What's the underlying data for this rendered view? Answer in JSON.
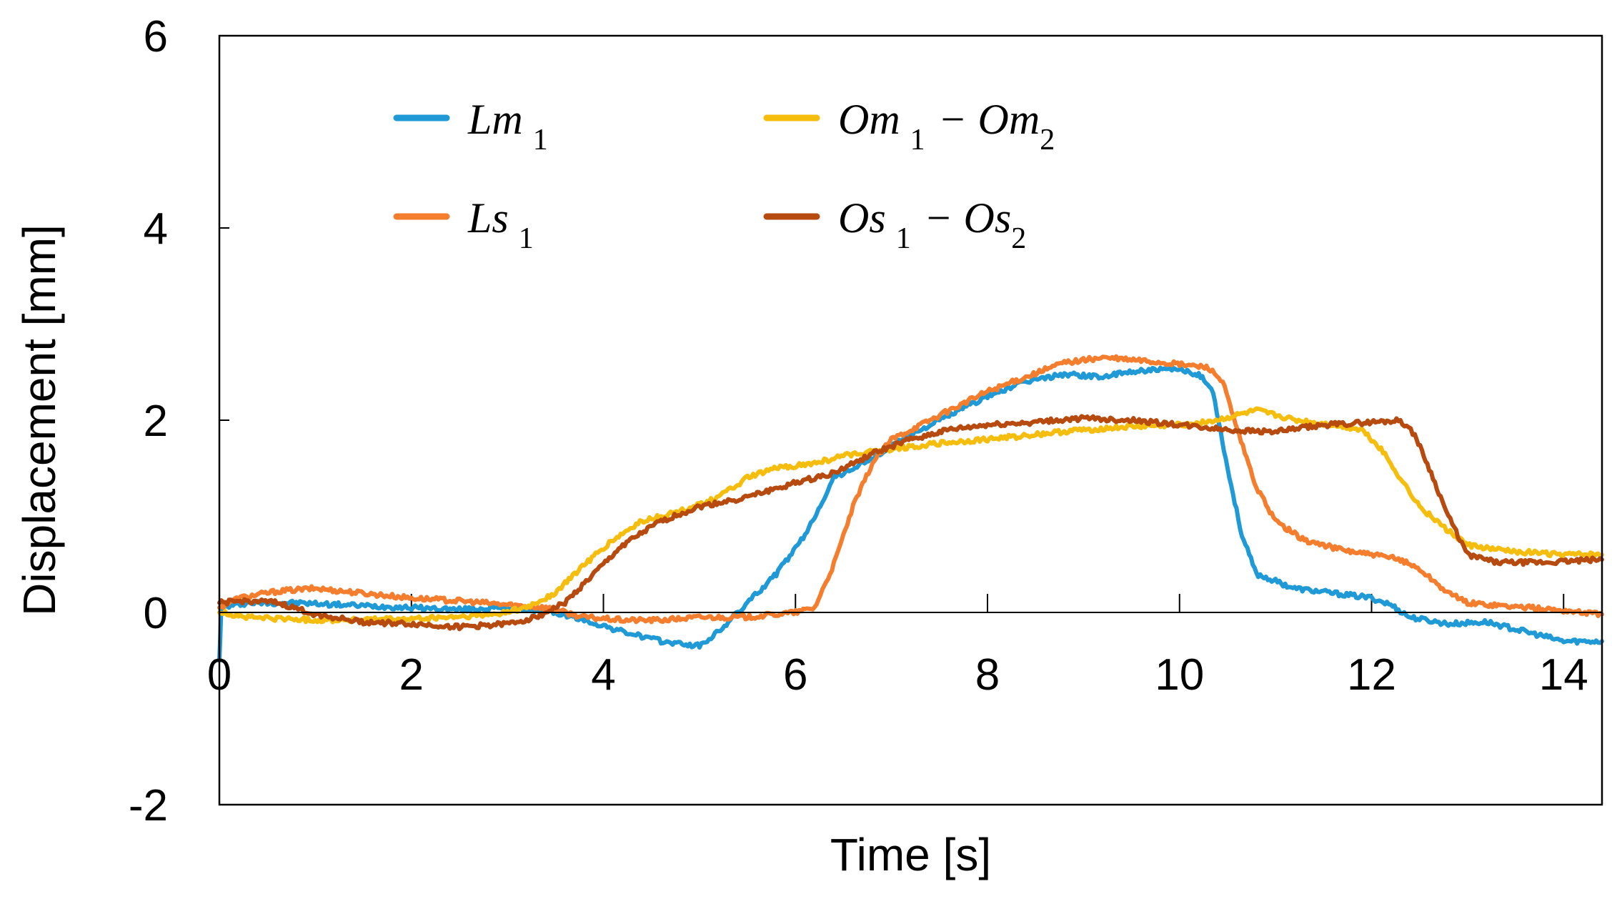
{
  "chart_data": {
    "type": "line",
    "title": "",
    "xlabel": "Time [s]",
    "ylabel": "Displacement [mm]",
    "xlim": [
      0,
      14.4
    ],
    "ylim": [
      -2,
      6
    ],
    "xticks": [
      0,
      2,
      4,
      6,
      8,
      10,
      12,
      14
    ],
    "yticks": [
      -2,
      0,
      2,
      4,
      6
    ],
    "legend_position": "top-left",
    "series": [
      {
        "name": "Lm 1",
        "legend": {
          "main": "Lm",
          "sub1": "1",
          "op": "",
          "main2": "",
          "sub2": ""
        },
        "color": "#1F9AD6",
        "points": [
          [
            0,
            -0.5
          ],
          [
            0.02,
            0.05
          ],
          [
            0.3,
            0.1
          ],
          [
            0.8,
            0.1
          ],
          [
            1.5,
            0.07
          ],
          [
            2,
            0.05
          ],
          [
            2.5,
            0.03
          ],
          [
            3,
            0.05
          ],
          [
            3.4,
            0.02
          ],
          [
            3.8,
            -0.08
          ],
          [
            4.2,
            -0.2
          ],
          [
            4.6,
            -0.3
          ],
          [
            5,
            -0.35
          ],
          [
            5.2,
            -0.2
          ],
          [
            5.5,
            0.1
          ],
          [
            5.8,
            0.4
          ],
          [
            6.1,
            0.8
          ],
          [
            6.4,
            1.4
          ],
          [
            6.8,
            1.6
          ],
          [
            7.2,
            1.85
          ],
          [
            7.6,
            2.05
          ],
          [
            8,
            2.25
          ],
          [
            8.4,
            2.4
          ],
          [
            8.8,
            2.48
          ],
          [
            9.2,
            2.45
          ],
          [
            9.6,
            2.52
          ],
          [
            10,
            2.52
          ],
          [
            10.2,
            2.48
          ],
          [
            10.35,
            2.3
          ],
          [
            10.5,
            1.5
          ],
          [
            10.65,
            0.8
          ],
          [
            10.8,
            0.4
          ],
          [
            11.2,
            0.25
          ],
          [
            11.6,
            0.2
          ],
          [
            12,
            0.15
          ],
          [
            12.2,
            0.08
          ],
          [
            12.4,
            -0.05
          ],
          [
            12.8,
            -0.12
          ],
          [
            13.2,
            -0.1
          ],
          [
            13.6,
            -0.2
          ],
          [
            14,
            -0.3
          ],
          [
            14.4,
            -0.3
          ]
        ]
      },
      {
        "name": "Ls 1",
        "legend": {
          "main": "Ls",
          "sub1": "1",
          "op": "",
          "main2": "",
          "sub2": ""
        },
        "color": "#F47E2E",
        "points": [
          [
            0,
            0.05
          ],
          [
            0.2,
            0.15
          ],
          [
            0.6,
            0.22
          ],
          [
            1,
            0.25
          ],
          [
            1.5,
            0.2
          ],
          [
            2,
            0.15
          ],
          [
            2.5,
            0.12
          ],
          [
            3,
            0.08
          ],
          [
            3.4,
            0.05
          ],
          [
            3.8,
            -0.05
          ],
          [
            4.2,
            -0.08
          ],
          [
            4.6,
            -0.08
          ],
          [
            5,
            -0.05
          ],
          [
            5.5,
            -0.05
          ],
          [
            6,
            0.0
          ],
          [
            6.2,
            0.05
          ],
          [
            6.4,
            0.5
          ],
          [
            6.6,
            1.1
          ],
          [
            6.8,
            1.55
          ],
          [
            7,
            1.8
          ],
          [
            7.3,
            1.95
          ],
          [
            7.7,
            2.15
          ],
          [
            8,
            2.3
          ],
          [
            8.4,
            2.45
          ],
          [
            8.8,
            2.6
          ],
          [
            9.2,
            2.65
          ],
          [
            9.6,
            2.62
          ],
          [
            10,
            2.58
          ],
          [
            10.3,
            2.55
          ],
          [
            10.45,
            2.4
          ],
          [
            10.6,
            1.9
          ],
          [
            10.8,
            1.3
          ],
          [
            11,
            0.95
          ],
          [
            11.3,
            0.75
          ],
          [
            11.7,
            0.65
          ],
          [
            12,
            0.6
          ],
          [
            12.3,
            0.55
          ],
          [
            12.5,
            0.45
          ],
          [
            12.8,
            0.2
          ],
          [
            13,
            0.1
          ],
          [
            13.5,
            0.06
          ],
          [
            14,
            0.02
          ],
          [
            14.4,
            -0.02
          ]
        ]
      },
      {
        "name": "Om 1 - Om2",
        "legend": {
          "main": "Om",
          "sub1": "1",
          "op": "−",
          "main2": "Om",
          "sub2": "2"
        },
        "color": "#F5BE0E",
        "points": [
          [
            0,
            0.0
          ],
          [
            0.3,
            -0.05
          ],
          [
            1,
            -0.08
          ],
          [
            2,
            -0.07
          ],
          [
            2.8,
            -0.03
          ],
          [
            3.2,
            0.05
          ],
          [
            3.5,
            0.2
          ],
          [
            3.8,
            0.5
          ],
          [
            4.1,
            0.75
          ],
          [
            4.4,
            0.95
          ],
          [
            4.8,
            1.05
          ],
          [
            5.2,
            1.2
          ],
          [
            5.5,
            1.4
          ],
          [
            5.8,
            1.5
          ],
          [
            6.2,
            1.55
          ],
          [
            6.6,
            1.65
          ],
          [
            7,
            1.7
          ],
          [
            7.4,
            1.75
          ],
          [
            8,
            1.8
          ],
          [
            8.5,
            1.85
          ],
          [
            9,
            1.9
          ],
          [
            9.5,
            1.93
          ],
          [
            10,
            1.95
          ],
          [
            10.4,
            2.0
          ],
          [
            10.8,
            2.1
          ],
          [
            11.2,
            2.0
          ],
          [
            11.6,
            1.95
          ],
          [
            11.9,
            1.9
          ],
          [
            12.1,
            1.7
          ],
          [
            12.3,
            1.4
          ],
          [
            12.5,
            1.1
          ],
          [
            12.8,
            0.85
          ],
          [
            13,
            0.7
          ],
          [
            13.3,
            0.65
          ],
          [
            13.7,
            0.62
          ],
          [
            14,
            0.6
          ],
          [
            14.4,
            0.6
          ]
        ]
      },
      {
        "name": "Os 1 - Os2",
        "legend": {
          "main": "Os",
          "sub1": "1",
          "op": "−",
          "main2": "Os",
          "sub2": "2"
        },
        "color": "#B74A0E",
        "points": [
          [
            0,
            0.1
          ],
          [
            0.3,
            0.12
          ],
          [
            0.6,
            0.1
          ],
          [
            1,
            -0.02
          ],
          [
            1.5,
            -0.1
          ],
          [
            2,
            -0.12
          ],
          [
            2.5,
            -0.15
          ],
          [
            3,
            -0.12
          ],
          [
            3.3,
            -0.05
          ],
          [
            3.6,
            0.1
          ],
          [
            3.9,
            0.4
          ],
          [
            4.2,
            0.7
          ],
          [
            4.6,
            0.95
          ],
          [
            5,
            1.1
          ],
          [
            5.5,
            1.2
          ],
          [
            6,
            1.35
          ],
          [
            6.4,
            1.45
          ],
          [
            6.8,
            1.65
          ],
          [
            7.2,
            1.8
          ],
          [
            7.6,
            1.9
          ],
          [
            8,
            1.95
          ],
          [
            8.5,
            1.98
          ],
          [
            9,
            2.02
          ],
          [
            9.5,
            2.0
          ],
          [
            10,
            1.95
          ],
          [
            10.5,
            1.9
          ],
          [
            11,
            1.88
          ],
          [
            11.5,
            1.95
          ],
          [
            12,
            1.98
          ],
          [
            12.3,
            2.0
          ],
          [
            12.45,
            1.85
          ],
          [
            12.6,
            1.5
          ],
          [
            12.8,
            1.0
          ],
          [
            13,
            0.6
          ],
          [
            13.3,
            0.52
          ],
          [
            13.8,
            0.52
          ],
          [
            14.4,
            0.55
          ]
        ]
      }
    ]
  }
}
